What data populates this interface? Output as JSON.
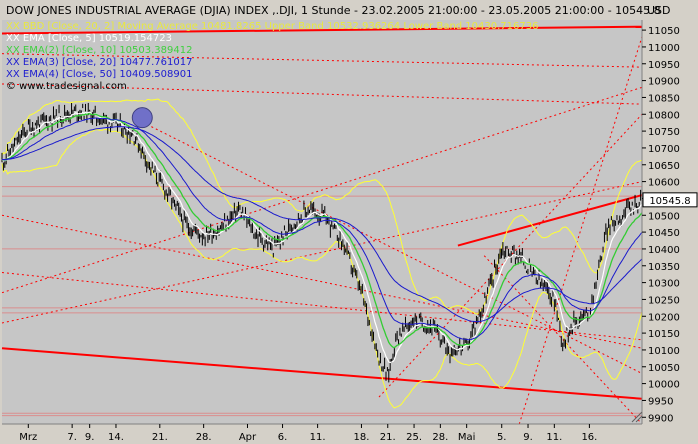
{
  "header": {
    "title": "DOW JONES INDUSTRIAL AVERAGE (DJIA) INDEX ,.DJI, 1 Stunde - 23.02.2005 21:00:00 - 23.05.2005 21:00:00 - 10545.8",
    "currency": "USD",
    "last_price_label": "10545.8"
  },
  "legend": [
    {
      "text": "XX BBD [Close, 20, 2] Moving Average 10481.8265 Upper Band 10532.936264 Lower Band 10430.716736",
      "color": "#e8e840"
    },
    {
      "text": "XX EMA [Close, 5] 10519.154723",
      "color": "#ffffff"
    },
    {
      "text": "XX EMA(2) [Close, 10] 10503.389412",
      "color": "#40d040"
    },
    {
      "text": "XX EMA(3) [Close, 20] 10477.761017",
      "color": "#1c1cd0"
    },
    {
      "text": "XX EMA(4) [Close, 50] 10409.508901",
      "color": "#1c1cd0"
    },
    {
      "text": "© www.tradesignal.com",
      "color": "#000000"
    }
  ],
  "colors": {
    "plot_bg": "#c6c6c6",
    "price": "#000000",
    "bollinger": "#ffff33",
    "ema5": "#ffffff",
    "ema10": "#33cc33",
    "ema20": "#1a1acc",
    "ema50": "#1a1acc",
    "trend": "#ff0000",
    "grid": "#b0b0b0"
  },
  "chart_data": {
    "type": "line",
    "title": "DOW JONES INDUSTRIAL AVERAGE (DJIA) INDEX ,.DJI, 1 Stunde - 23.02.2005 21:00:00 - 23.05.2005 21:00:00 - 10545.8",
    "ylabel": "USD",
    "ylim": [
      9880,
      11080
    ],
    "yticks": [
      9900,
      9950,
      10000,
      10050,
      10100,
      10150,
      10200,
      10250,
      10300,
      10350,
      10400,
      10450,
      10500,
      10550,
      10600,
      10650,
      10700,
      10750,
      10800,
      10850,
      10900,
      10950,
      11000,
      11050
    ],
    "x_ticks": [
      "Mrz",
      "7.",
      "9.",
      "14.",
      "21.",
      "28.",
      "Apr",
      "6.",
      "11.",
      "18.",
      "21.",
      "25.",
      "28.",
      "Mai",
      "5.",
      "9.",
      "11.",
      "16."
    ],
    "x_tick_pos": [
      0,
      5,
      7,
      10,
      15,
      20,
      25,
      29,
      33,
      38,
      41,
      44,
      47,
      50,
      54,
      57,
      60,
      64
    ],
    "x_range": [
      -3,
      70
    ],
    "price_nodes": {
      "x": [
        -3,
        0,
        2,
        4,
        6,
        8,
        10,
        12,
        14,
        16,
        18,
        20,
        22,
        24,
        26,
        28,
        30,
        32,
        34,
        36,
        38,
        40,
        41,
        42,
        44,
        46,
        48,
        50,
        52,
        54,
        56,
        58,
        60,
        61,
        62,
        64,
        66,
        68,
        70
      ],
      "y": [
        10660,
        10760,
        10780,
        10800,
        10810,
        10790,
        10770,
        10740,
        10640,
        10560,
        10470,
        10440,
        10460,
        10520,
        10440,
        10400,
        10470,
        10520,
        10490,
        10410,
        10270,
        10080,
        10020,
        10140,
        10190,
        10170,
        10100,
        10110,
        10240,
        10400,
        10380,
        10310,
        10250,
        10120,
        10180,
        10210,
        10460,
        10510,
        10546
      ]
    },
    "indicators": [
      "Bollinger Bands (20, 2)",
      "EMA 5",
      "EMA 10",
      "EMA 20",
      "EMA 50"
    ],
    "horizontal_levels": [
      10585,
      10557,
      10400,
      10225,
      10210,
      9912,
      9905
    ],
    "trendlines": [
      {
        "x": [
          -3,
          70
        ],
        "y": [
          11040,
          11060
        ],
        "style": "solid"
      },
      {
        "x": [
          -3,
          70
        ],
        "y": [
          10105,
          9955
        ],
        "style": "solid"
      },
      {
        "x": [
          49,
          70
        ],
        "y": [
          10410,
          10560
        ],
        "style": "solid"
      },
      {
        "x": [
          -3,
          70
        ],
        "y": [
          10180,
          10600
        ],
        "style": "dotted"
      },
      {
        "x": [
          -3,
          70
        ],
        "y": [
          10270,
          10880
        ],
        "style": "dotted"
      },
      {
        "x": [
          -3,
          70
        ],
        "y": [
          10500,
          10105
        ],
        "style": "dotted"
      },
      {
        "x": [
          -3,
          70
        ],
        "y": [
          10330,
          10130
        ],
        "style": "dotted"
      },
      {
        "x": [
          -3,
          70
        ],
        "y": [
          10980,
          10940
        ],
        "style": "dotted"
      },
      {
        "x": [
          -3,
          70
        ],
        "y": [
          10890,
          10830
        ],
        "style": "dotted"
      },
      {
        "x": [
          12,
          70
        ],
        "y": [
          10790,
          10030
        ],
        "style": "dotted"
      },
      {
        "x": [
          40,
          70
        ],
        "y": [
          9960,
          10800
        ],
        "style": "dotted"
      },
      {
        "x": [
          56,
          70
        ],
        "y": [
          9880,
          11030
        ],
        "style": "dotted"
      },
      {
        "x": [
          52,
          70
        ],
        "y": [
          10380,
          9880
        ],
        "style": "dotted"
      }
    ],
    "marker": {
      "x": 13,
      "y": 10790
    },
    "grid": false,
    "legend_position": "top-left"
  }
}
